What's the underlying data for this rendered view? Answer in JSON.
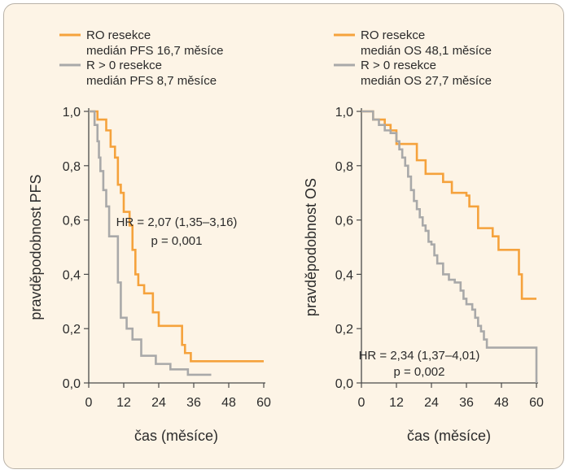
{
  "colors": {
    "r0": "#f5a23c",
    "r_gt0": "#a9a9a9",
    "frame": "#b9b2a8",
    "background": "#fdf4e6"
  },
  "chart_data": [
    {
      "type": "line",
      "step": true,
      "title": "",
      "xlabel": "čas (měsíce)",
      "ylabel": "pravděpodobnost PFS",
      "xlim": [
        0,
        60
      ],
      "ylim": [
        0,
        1
      ],
      "x_ticks": [
        "0",
        "12",
        "24",
        "36",
        "48",
        "60"
      ],
      "y_ticks": [
        "0,0",
        "0,2",
        "0,4",
        "0,6",
        "0,8",
        "1,0"
      ],
      "legend": {
        "position": "top-left",
        "entries": [
          {
            "label": "RO resekce",
            "sublabel": "medián PFS 16,7 měsíce",
            "color": "#f5a23c"
          },
          {
            "label": "R > 0 resekce",
            "sublabel": "medián PFS 8,7 měsíce",
            "color": "#a9a9a9"
          }
        ]
      },
      "annotation": {
        "line1": "HR = 2,07 (1,35–3,16)",
        "line2": "p = 0,001"
      },
      "series": [
        {
          "name": "RO resekce",
          "color": "#f5a23c",
          "x": [
            0,
            1.5,
            3,
            6,
            7.5,
            9,
            10,
            11,
            12,
            13,
            14,
            15,
            16,
            17,
            19,
            22,
            24,
            27,
            32,
            33,
            35,
            60
          ],
          "y": [
            1.0,
            1.0,
            0.97,
            0.93,
            0.87,
            0.83,
            0.73,
            0.7,
            0.63,
            0.63,
            0.58,
            0.49,
            0.4,
            0.36,
            0.33,
            0.26,
            0.21,
            0.21,
            0.14,
            0.11,
            0.08,
            0.08
          ]
        },
        {
          "name": "R > 0 resekce",
          "color": "#a9a9a9",
          "x": [
            0,
            1,
            2,
            3,
            3.5,
            4,
            5,
            6,
            7,
            8,
            10,
            11,
            12,
            13,
            15,
            18,
            20,
            23,
            28,
            34,
            42
          ],
          "y": [
            1.0,
            1.0,
            0.95,
            0.89,
            0.83,
            0.78,
            0.71,
            0.65,
            0.54,
            0.54,
            0.37,
            0.24,
            0.24,
            0.2,
            0.16,
            0.1,
            0.1,
            0.07,
            0.05,
            0.03,
            0.03
          ]
        }
      ]
    },
    {
      "type": "line",
      "step": true,
      "title": "",
      "xlabel": "čas (měsíce)",
      "ylabel": "pravděpodobnost OS",
      "xlim": [
        0,
        60
      ],
      "ylim": [
        0,
        1
      ],
      "x_ticks": [
        "0",
        "12",
        "24",
        "36",
        "48",
        "60"
      ],
      "y_ticks": [
        "0,0",
        "0,2",
        "0,4",
        "0,6",
        "0,8",
        "1,0"
      ],
      "legend": {
        "position": "top-left",
        "entries": [
          {
            "label": "RO resekce",
            "sublabel": "medián OS 48,1 měsíce",
            "color": "#f5a23c"
          },
          {
            "label": "R > 0 resekce",
            "sublabel": "medián OS 27,7 měsíce",
            "color": "#a9a9a9"
          }
        ]
      },
      "annotation": {
        "line1": "HR = 2,34 (1,37–4,01)",
        "line2": "p = 0,002"
      },
      "series": [
        {
          "name": "RO resekce",
          "color": "#f5a23c",
          "x": [
            0,
            4,
            6,
            8,
            10,
            12,
            16,
            19,
            22,
            25,
            28,
            31,
            33,
            36,
            37,
            40,
            45,
            47,
            52,
            54,
            55,
            60
          ],
          "y": [
            1.0,
            0.97,
            0.97,
            0.95,
            0.93,
            0.88,
            0.88,
            0.82,
            0.77,
            0.77,
            0.74,
            0.7,
            0.7,
            0.69,
            0.65,
            0.57,
            0.54,
            0.49,
            0.49,
            0.4,
            0.31,
            0.31
          ]
        },
        {
          "name": "R > 0 resekce",
          "color": "#a9a9a9",
          "x": [
            0,
            4,
            6,
            8,
            10,
            12,
            13,
            14,
            15,
            16,
            17,
            18,
            19,
            20,
            21,
            22,
            23,
            24,
            25,
            26,
            28,
            30,
            32,
            34,
            35,
            36,
            38,
            39,
            40,
            41,
            42,
            43,
            45,
            48,
            59,
            60
          ],
          "y": [
            1.0,
            0.97,
            0.95,
            0.93,
            0.92,
            0.89,
            0.86,
            0.83,
            0.8,
            0.76,
            0.71,
            0.67,
            0.64,
            0.61,
            0.58,
            0.56,
            0.52,
            0.51,
            0.47,
            0.44,
            0.4,
            0.38,
            0.37,
            0.34,
            0.31,
            0.29,
            0.27,
            0.24,
            0.21,
            0.19,
            0.16,
            0.13,
            0.13,
            0.13,
            0.13,
            0.0
          ]
        }
      ]
    }
  ]
}
